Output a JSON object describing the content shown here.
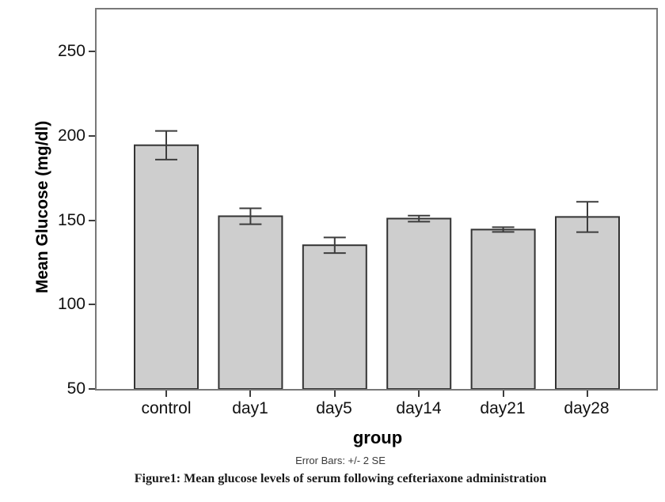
{
  "figure": {
    "caption": "Figure1: Mean glucose levels of serum following cefteriaxone administration",
    "footnote": "Error Bars: +/- 2 SE"
  },
  "chart_data": {
    "type": "bar",
    "title": "",
    "xlabel": "group",
    "ylabel": "Mean Glucose (mg/dl)",
    "categories": [
      "control",
      "day1",
      "day5",
      "day14",
      "day21",
      "day28"
    ],
    "values": [
      194.5,
      152.4,
      135.2,
      151.0,
      144.5,
      152.0
    ],
    "error_bars": {
      "label": "+/- 2 SE",
      "upper": [
        203.0,
        157.1,
        139.8,
        152.8,
        145.9,
        161.0
      ],
      "lower": [
        186.0,
        147.7,
        130.6,
        149.2,
        143.1,
        143.0
      ]
    },
    "yticks": [
      250,
      200,
      150,
      100,
      50
    ],
    "ylim": [
      50,
      275
    ],
    "grid": false,
    "legend": null,
    "colors": {
      "bar_fill": "#cecece",
      "bar_stroke": "#333333",
      "errorbar": "#3d3d3d",
      "frame": "#787878",
      "tick": "#3d3d3d"
    }
  }
}
